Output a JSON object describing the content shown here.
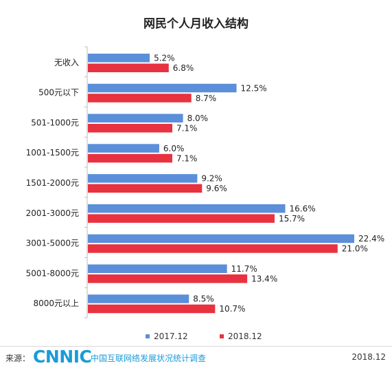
{
  "chart_data": {
    "type": "bar",
    "orientation": "horizontal",
    "title": "网民个人月收入结构",
    "categories": [
      "无收入",
      "500元以下",
      "501-1000元",
      "1001-1500元",
      "1501-2000元",
      "2001-3000元",
      "3001-5000元",
      "5001-8000元",
      "8000元以上"
    ],
    "series": [
      {
        "name": "2017.12",
        "color": "#5b8fd9",
        "values": [
          5.2,
          12.5,
          8.0,
          6.0,
          9.2,
          16.6,
          22.4,
          11.7,
          8.5
        ],
        "labels": [
          "5.2%",
          "12.5%",
          "8.0%",
          "6.0%",
          "9.2%",
          "16.6%",
          "22.4%",
          "11.7%",
          "8.5%"
        ]
      },
      {
        "name": "2018.12",
        "color": "#e8323f",
        "values": [
          6.8,
          8.7,
          7.1,
          7.1,
          9.6,
          15.7,
          21.0,
          13.4,
          10.7
        ],
        "labels": [
          "6.8%",
          "8.7%",
          "7.1%",
          "7.1%",
          "9.6%",
          "15.7%",
          "21.0%",
          "13.4%",
          "10.7%"
        ]
      }
    ],
    "xlim": [
      0,
      22.4
    ],
    "grid": false,
    "legend": "bottom"
  },
  "legend": {
    "s1": "2017.12",
    "s2": "2018.12"
  },
  "footer": {
    "source_label": "来源：",
    "logo": "CNNIC",
    "org": "中国互联网络发展状况统计调查",
    "date": "2018.12"
  }
}
